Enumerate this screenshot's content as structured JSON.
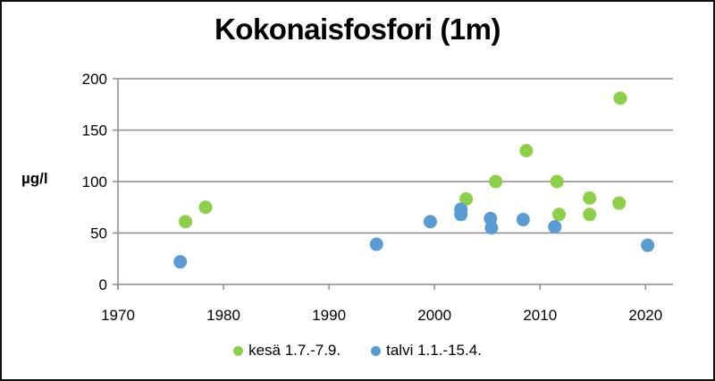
{
  "title": "Kokonaisfosfori (1m)",
  "ylabel": "µg/l",
  "legend": [
    {
      "label": "kesä 1.7.-7.9.",
      "color": "#8cd049"
    },
    {
      "label": "talvi 1.1.-15.4.",
      "color": "#5b9bd5"
    }
  ],
  "chart_data": {
    "type": "scatter",
    "title": "Kokonaisfosfori (1m)",
    "xlabel": "",
    "ylabel": "µg/l",
    "xlim": [
      1970,
      2022.6
    ],
    "ylim": [
      0,
      200
    ],
    "xticks": [
      1970,
      1980,
      1990,
      2000,
      2010,
      2020
    ],
    "yticks": [
      0,
      50,
      100,
      150,
      200
    ],
    "grid": "horizontal",
    "legend_position": "bottom",
    "series": [
      {
        "name": "kesä 1.7.-7.9.",
        "color": "#8cd049",
        "points": [
          [
            1976.4,
            61
          ],
          [
            1978.3,
            75
          ],
          [
            2003.0,
            83
          ],
          [
            2005.8,
            100
          ],
          [
            2008.7,
            130
          ],
          [
            2011.6,
            100
          ],
          [
            2011.8,
            68
          ],
          [
            2014.7,
            84
          ],
          [
            2014.7,
            68
          ],
          [
            2017.5,
            79
          ],
          [
            2017.6,
            181
          ]
        ]
      },
      {
        "name": "talvi 1.1.-15.4.",
        "color": "#5b9bd5",
        "points": [
          [
            1975.9,
            22
          ],
          [
            1994.5,
            39
          ],
          [
            1999.6,
            61
          ],
          [
            2002.5,
            73
          ],
          [
            2002.5,
            68
          ],
          [
            2005.3,
            64
          ],
          [
            2005.4,
            55
          ],
          [
            2008.4,
            63
          ],
          [
            2011.4,
            56
          ],
          [
            2020.2,
            38
          ]
        ]
      }
    ]
  }
}
